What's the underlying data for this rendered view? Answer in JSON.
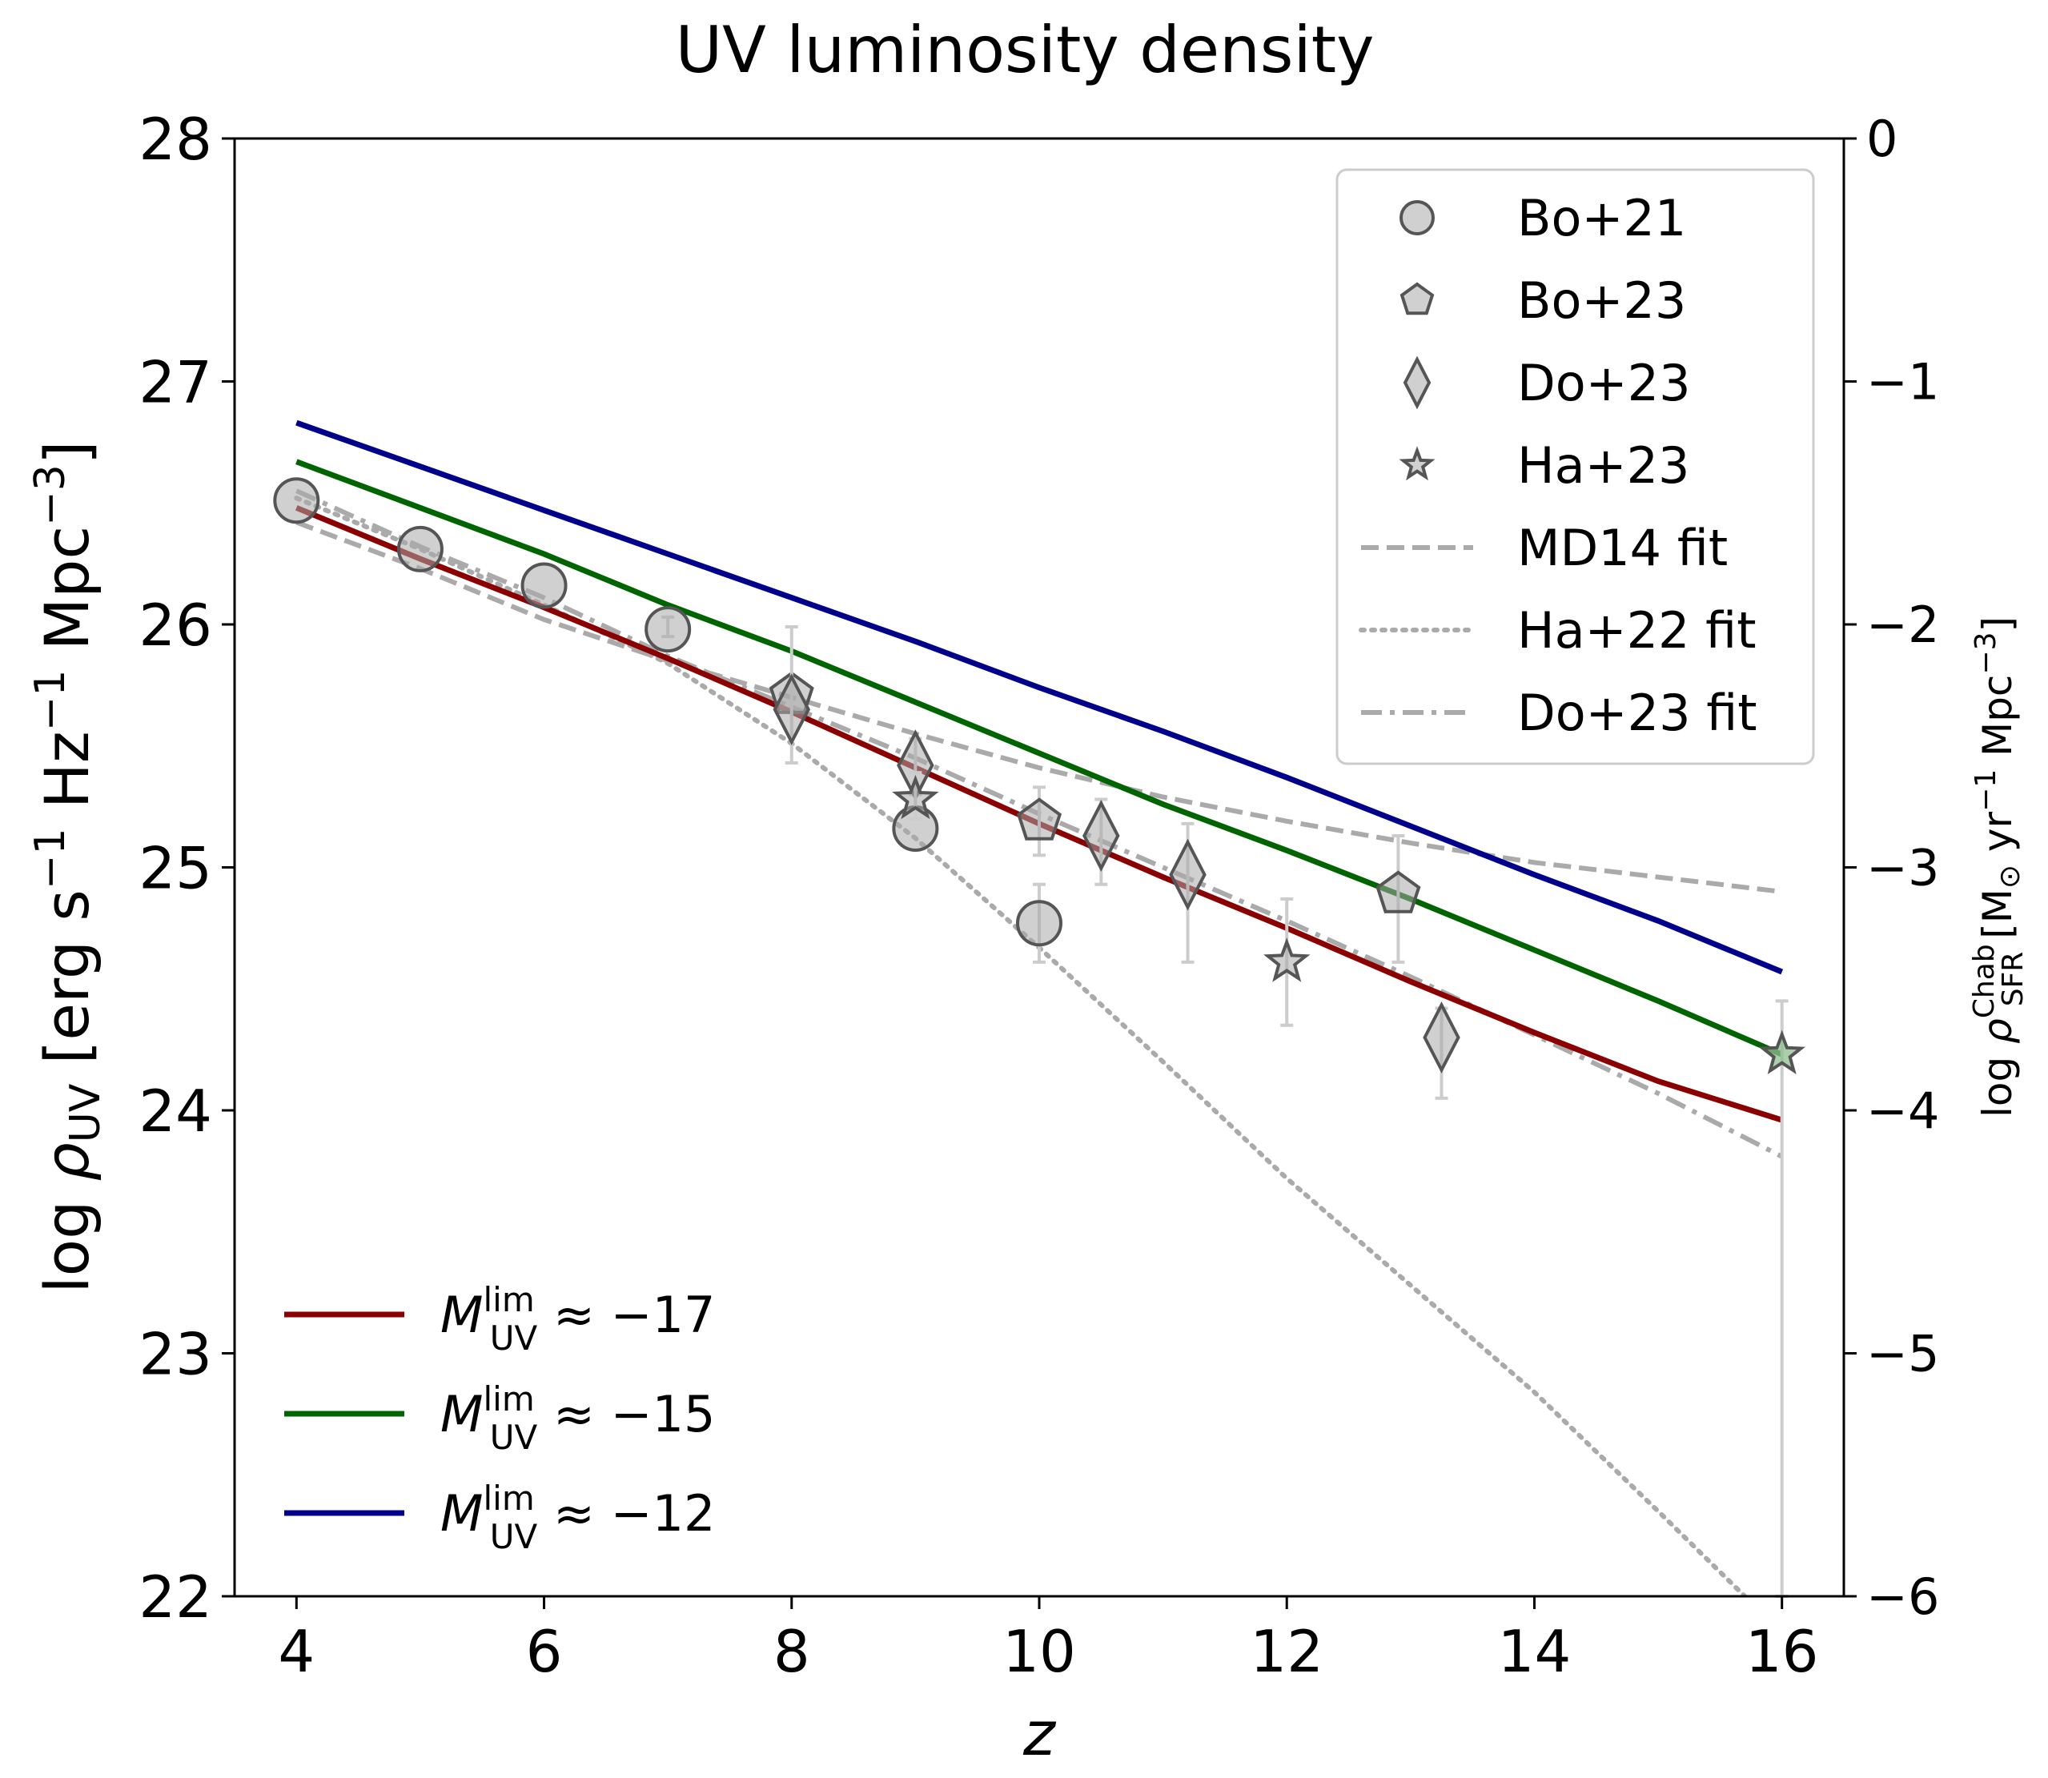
{
  "chart_data": {
    "type": "line",
    "title": "UV luminosity density",
    "xlabel": "z",
    "ylabel_left": {
      "prefix": "log ",
      "symbol": "ρ",
      "sub": "UV",
      "units_pre": " [erg s",
      "units_exp1": "−1",
      "units_mid": " Hz",
      "units_exp2": "−1",
      "units_mid2": " Mpc",
      "units_exp3": "−3",
      "units_post": "]"
    },
    "ylabel_right": {
      "prefix": "log ",
      "symbol": "ρ",
      "sup": "Chab",
      "sub": "SFR",
      "units_pre": " [M",
      "sun": "⊙",
      "units_mid": " yr",
      "units_exp1": "−1",
      "units_mid2": " Mpc",
      "units_exp2": "−3",
      "units_post": "]"
    },
    "xlim": [
      3.5,
      16.5
    ],
    "ylim_left": [
      22,
      28
    ],
    "ylim_right": [
      -6,
      0
    ],
    "x_ticks": [
      "4",
      "6",
      "8",
      "10",
      "12",
      "14",
      "16"
    ],
    "y_ticks_left": [
      "22",
      "23",
      "24",
      "25",
      "26",
      "27",
      "28"
    ],
    "y_ticks_right": [
      "−6",
      "−5",
      "−4",
      "−3",
      "−2",
      "−1",
      "0"
    ],
    "model_series": [
      {
        "name": "M_UV^lim ≈ −17",
        "label_main": "M",
        "label_sup": "lim",
        "label_sub": "UV",
        "label_rest": " ≈ −17",
        "color": "#8b0000",
        "x": [
          4,
          5,
          6,
          7,
          8,
          9,
          10,
          11,
          12,
          13,
          14,
          15,
          16
        ],
        "y": [
          26.48,
          26.27,
          26.07,
          25.86,
          25.64,
          25.41,
          25.18,
          24.96,
          24.75,
          24.53,
          24.32,
          24.12,
          23.96
        ]
      },
      {
        "name": "M_UV^lim ≈ −15",
        "label_main": "M",
        "label_sup": "lim",
        "label_sub": "UV",
        "label_rest": " ≈ −15",
        "color": "#006400",
        "x": [
          4,
          5,
          6,
          7,
          8,
          9,
          10,
          11,
          12,
          13,
          14,
          15,
          16
        ],
        "y": [
          26.67,
          26.48,
          26.29,
          26.08,
          25.89,
          25.68,
          25.47,
          25.26,
          25.07,
          24.87,
          24.66,
          24.45,
          24.23
        ]
      },
      {
        "name": "M_UV^lim ≈ −12",
        "label_main": "M",
        "label_sup": "lim",
        "label_sub": "UV",
        "label_rest": " ≈ −12",
        "color": "#00008b",
        "x": [
          4,
          5,
          6,
          7,
          8,
          9,
          10,
          11,
          12,
          13,
          14,
          15,
          16
        ],
        "y": [
          26.83,
          26.65,
          26.47,
          26.29,
          26.11,
          25.93,
          25.74,
          25.56,
          25.37,
          25.17,
          24.97,
          24.78,
          24.57
        ]
      }
    ],
    "fit_series": [
      {
        "name": "MD14 fit",
        "style": "dashed",
        "color": "#aaaaaa",
        "x": [
          4,
          5,
          6,
          7,
          8,
          9,
          10,
          11,
          12,
          13,
          14,
          15,
          16
        ],
        "y": [
          26.42,
          26.23,
          26.02,
          25.85,
          25.7,
          25.55,
          25.41,
          25.29,
          25.19,
          25.1,
          25.02,
          24.96,
          24.9
        ]
      },
      {
        "name": "Ha+22 fit",
        "style": "dotted",
        "color": "#aaaaaa",
        "x": [
          4,
          5,
          6,
          7,
          8,
          9,
          10,
          11,
          12,
          13,
          14,
          15,
          15.7
        ],
        "y": [
          26.52,
          26.31,
          26.08,
          25.84,
          25.51,
          25.12,
          24.67,
          24.2,
          23.72,
          23.28,
          22.84,
          22.35,
          22.0
        ]
      },
      {
        "name": "Do+23 fit",
        "style": "dashdot",
        "color": "#aaaaaa",
        "x": [
          4,
          5,
          6,
          7,
          8,
          9,
          10,
          11,
          12,
          13,
          14,
          15,
          16
        ],
        "y": [
          26.55,
          26.32,
          26.11,
          25.87,
          25.66,
          25.45,
          25.22,
          25.0,
          24.78,
          24.55,
          24.31,
          24.07,
          23.81
        ]
      }
    ],
    "observations": [
      {
        "name": "Bo+21",
        "marker": "circle",
        "points": [
          {
            "x": 4,
            "y": 26.51,
            "lo": 26.51,
            "hi": 26.51
          },
          {
            "x": 5,
            "y": 26.31,
            "lo": 26.31,
            "hi": 26.31
          },
          {
            "x": 6,
            "y": 26.16,
            "lo": 26.16,
            "hi": 26.16
          },
          {
            "x": 7,
            "y": 25.98,
            "lo": 25.95,
            "hi": 26.03
          },
          {
            "x": 9,
            "y": 25.16,
            "lo": 25.16,
            "hi": 25.16
          },
          {
            "x": 10,
            "y": 24.77,
            "lo": 24.61,
            "hi": 24.93
          }
        ]
      },
      {
        "name": "Bo+23",
        "marker": "pentagon",
        "points": [
          {
            "x": 8,
            "y": 25.71,
            "lo": 25.71,
            "hi": 25.71
          },
          {
            "x": 10,
            "y": 25.19,
            "lo": 25.05,
            "hi": 25.33
          },
          {
            "x": 12.9,
            "y": 24.89,
            "lo": 24.61,
            "hi": 25.13
          }
        ]
      },
      {
        "name": "Do+23",
        "marker": "diamond",
        "points": [
          {
            "x": 8,
            "y": 25.65,
            "lo": 25.43,
            "hi": 25.99
          },
          {
            "x": 9,
            "y": 25.42,
            "lo": 25.3,
            "hi": 25.53
          },
          {
            "x": 10.5,
            "y": 25.13,
            "lo": 24.93,
            "hi": 25.28
          },
          {
            "x": 11.2,
            "y": 24.97,
            "lo": 24.61,
            "hi": 25.18
          },
          {
            "x": 13.25,
            "y": 24.3,
            "lo": 24.05,
            "hi": 24.42
          }
        ]
      },
      {
        "name": "Ha+23",
        "marker": "star",
        "points": [
          {
            "x": 9,
            "y": 25.28,
            "lo": 25.2,
            "hi": 25.39
          },
          {
            "x": 12,
            "y": 24.61,
            "lo": 24.35,
            "hi": 24.87
          },
          {
            "x": 16,
            "y": 24.23,
            "lo": 22.0,
            "hi": 24.45
          }
        ]
      }
    ],
    "legend_observations": [
      "Bo+21",
      "Bo+23",
      "Do+23",
      "Ha+23",
      "MD14 fit",
      "Ha+22 fit",
      "Do+23 fit"
    ],
    "legend_placement_obs": "top-right",
    "legend_placement_models": "bottom-left",
    "colors": {
      "marker_fill": "#aaaaaa",
      "marker_edge": "#555555",
      "errorbar": "#cccccc",
      "fit": "#aaaaaa"
    }
  }
}
